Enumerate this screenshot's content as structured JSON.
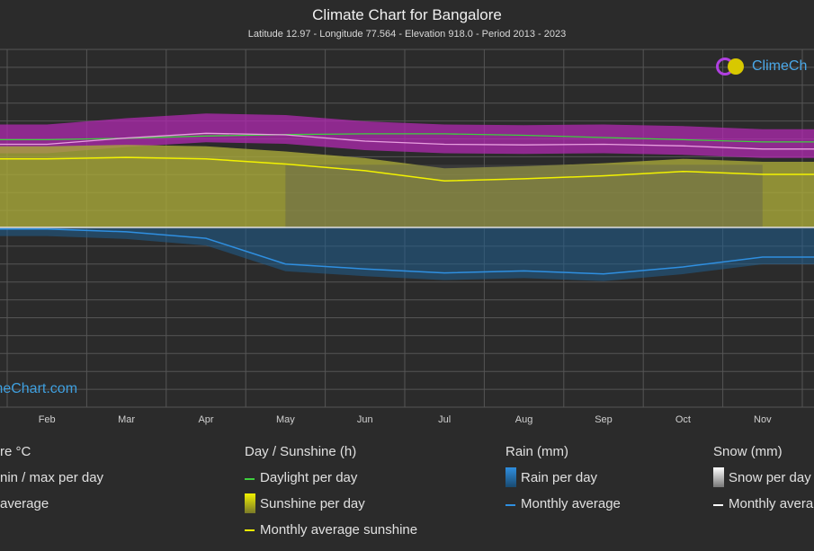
{
  "header": {
    "title": "Climate Chart for Bangalore",
    "subtitle": "Latitude 12.97 - Longitude 77.564 - Elevation 918.0 - Period 2013 - 2023"
  },
  "logos": {
    "top_text": "ClimeCh",
    "bottom_text": "meChart.com"
  },
  "legend": {
    "temperature": {
      "heading": "re °C",
      "items": [
        "nin / max per day",
        "average"
      ]
    },
    "sunshine": {
      "heading": "Day / Sunshine (h)",
      "items": [
        "Daylight per day",
        "Sunshine per day",
        "Monthly average sunshine"
      ]
    },
    "rain": {
      "heading": "Rain (mm)",
      "items": [
        "Rain per day",
        "Monthly average"
      ]
    },
    "snow": {
      "heading": "Snow (mm)",
      "items": [
        "Snow per day",
        "Monthly avera"
      ]
    }
  },
  "colors": {
    "background": "#2b2b2b",
    "grid": "#555555",
    "daylight": "#3ecf3e",
    "sunshine_fill": "#a9a93a",
    "sunshine_avg": "#f2f200",
    "temp_band": "#b02ab0",
    "temp_avg": "#e8a0e0",
    "rain_fill": "#1f5f8f",
    "rain_avg": "#2f8fe0",
    "snow": "#ffffff"
  },
  "chart_data": {
    "type": "area",
    "months": [
      "Feb",
      "Mar",
      "Apr",
      "May",
      "Jun",
      "Jul",
      "Aug",
      "Sep",
      "Oct",
      "Nov"
    ],
    "series": [
      {
        "name": "Daylight per day",
        "unit": "h",
        "values": [
          11.9,
          12.1,
          12.4,
          12.6,
          12.7,
          12.7,
          12.5,
          12.2,
          11.9,
          11.6
        ]
      },
      {
        "name": "Monthly average sunshine",
        "unit": "h",
        "values": [
          9.3,
          9.5,
          9.3,
          8.6,
          7.7,
          6.3,
          6.6,
          7.0,
          7.6,
          7.2
        ]
      },
      {
        "name": "Average temperature",
        "unit": "°C",
        "values": [
          23.0,
          25.0,
          26.5,
          26.0,
          24.0,
          23.0,
          22.8,
          23.0,
          22.5,
          21.5
        ]
      },
      {
        "name": "Rain monthly average",
        "unit": "mm",
        "values": [
          1.5,
          4.5,
          11.0,
          37.0,
          42.0,
          46.0,
          44.0,
          47.0,
          40.0,
          30.0
        ]
      }
    ]
  }
}
